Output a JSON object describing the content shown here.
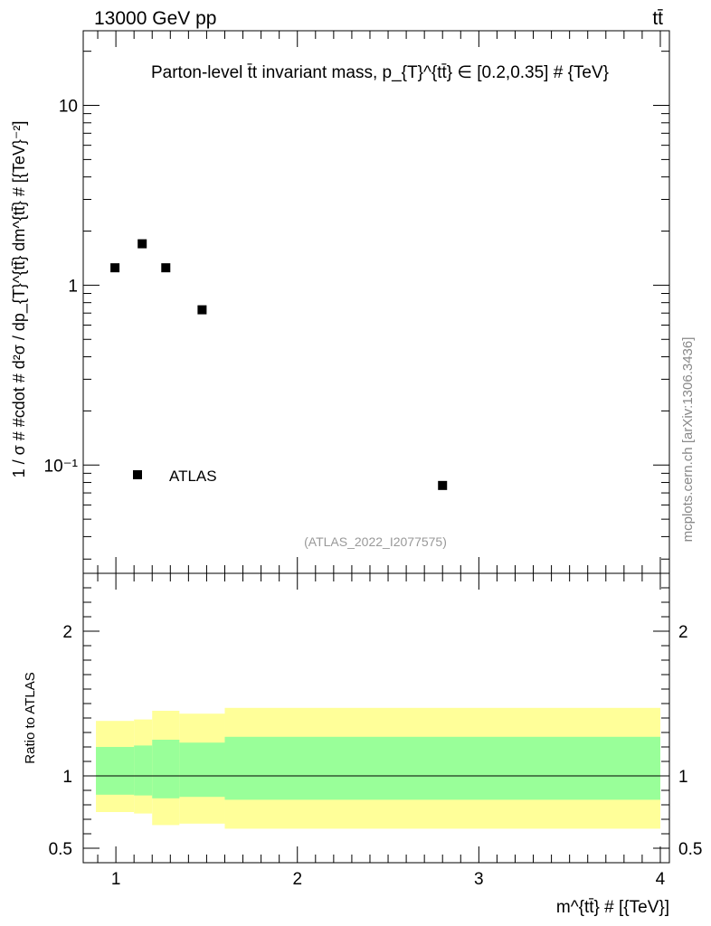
{
  "header": {
    "left": "13000 GeV pp",
    "right": "tt̄"
  },
  "watermark": "(ATLAS_2022_I2077575)",
  "side_label": "mcplots.cern.ch [arXiv:1306.3436]",
  "chart_data": [
    {
      "type": "scatter",
      "title": "Parton-level t̄t invariant mass, p_{T}^{tt̄} ∈ [0.2,0.35] # {TeV}",
      "ylabel": "1 / σ # #cdot # d²σ / dp_{T}^{tt̄} dm^{tt̄} # [{TeV}⁻²]",
      "ylog": true,
      "ylim": [
        0.025,
        26
      ],
      "xlim": [
        0.82,
        4.05
      ],
      "yticks": [
        {
          "value": 0.1,
          "label": "10⁻¹"
        },
        {
          "value": 1,
          "label": "1"
        },
        {
          "value": 10,
          "label": "10"
        }
      ],
      "legend": {
        "label": "ATLAS",
        "placement": "bottom-left"
      },
      "series": [
        {
          "name": "ATLAS",
          "color": "#000000",
          "points": [
            {
              "x": 0.995,
              "y": 1.25
            },
            {
              "x": 1.145,
              "y": 1.7
            },
            {
              "x": 1.275,
              "y": 1.25
            },
            {
              "x": 1.475,
              "y": 0.73
            },
            {
              "x": 2.8,
              "y": 0.077
            }
          ]
        }
      ]
    },
    {
      "type": "area",
      "ylabel": "Ratio to ATLAS",
      "xlabel": "m^{tt̄} # [{TeV}]",
      "xlim": [
        0.82,
        4.05
      ],
      "ylim": [
        0.4,
        2.4
      ],
      "xticks": [
        {
          "value": 1,
          "label": "1"
        },
        {
          "value": 2,
          "label": "2"
        },
        {
          "value": 3,
          "label": "3"
        },
        {
          "value": 4,
          "label": "4"
        }
      ],
      "yticks": [
        {
          "value": 0.5,
          "label": "0.5"
        },
        {
          "value": 1,
          "label": "1"
        },
        {
          "value": 2,
          "label": "2"
        }
      ],
      "reference_line": 1,
      "bands": [
        {
          "color": "#ffff99",
          "bins": [
            {
              "x0": 0.89,
              "x1": 1.1,
              "lo": 0.75,
              "hi": 1.38
            },
            {
              "x0": 1.1,
              "x1": 1.2,
              "lo": 0.74,
              "hi": 1.39
            },
            {
              "x0": 1.2,
              "x1": 1.35,
              "lo": 0.66,
              "hi": 1.45
            },
            {
              "x0": 1.35,
              "x1": 1.6,
              "lo": 0.67,
              "hi": 1.43
            },
            {
              "x0": 1.6,
              "x1": 4.0,
              "lo": 0.635,
              "hi": 1.47
            }
          ]
        },
        {
          "color": "#99ff99",
          "bins": [
            {
              "x0": 0.89,
              "x1": 1.1,
              "lo": 0.87,
              "hi": 1.2
            },
            {
              "x0": 1.1,
              "x1": 1.2,
              "lo": 0.865,
              "hi": 1.21
            },
            {
              "x0": 1.2,
              "x1": 1.35,
              "lo": 0.845,
              "hi": 1.25
            },
            {
              "x0": 1.35,
              "x1": 1.6,
              "lo": 0.855,
              "hi": 1.23
            },
            {
              "x0": 1.6,
              "x1": 4.0,
              "lo": 0.835,
              "hi": 1.27
            }
          ]
        }
      ]
    }
  ]
}
